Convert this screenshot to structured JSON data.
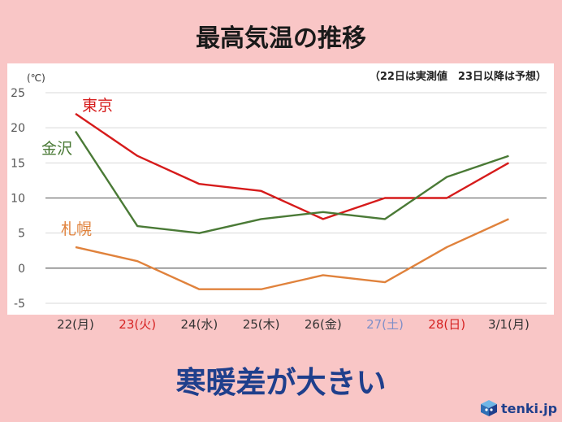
{
  "title": "最高気温の推移",
  "headline": "寒暖差が大きい",
  "logo": {
    "text": "tenki.jp",
    "icon": "tenki-cube-icon"
  },
  "chart_data": {
    "type": "line",
    "unit_label": "(℃)",
    "note": "（22日は実測値　23日以降は予想）",
    "categories": [
      "22(月)",
      "23(火)",
      "24(水)",
      "25(木)",
      "26(金)",
      "27(土)",
      "28(日)",
      "3/1(月)"
    ],
    "category_colors": [
      "#333333",
      "#d62222",
      "#333333",
      "#333333",
      "#333333",
      "#7f8fc8",
      "#d62222",
      "#333333"
    ],
    "ylim": [
      -5,
      25
    ],
    "yticks": [
      25,
      20,
      15,
      10,
      5,
      0,
      -5
    ],
    "grid": true,
    "legend": "inline labels",
    "series": [
      {
        "name": "東京",
        "color": "#d61b1b",
        "values": [
          22,
          16,
          12,
          11,
          7,
          10,
          10,
          15
        ]
      },
      {
        "name": "金沢",
        "color": "#4a7a36",
        "values": [
          19.5,
          6,
          5,
          7,
          8,
          7,
          13,
          16
        ]
      },
      {
        "name": "札幌",
        "color": "#e0823c",
        "values": [
          3,
          1,
          -3,
          -3,
          -1,
          -2,
          3,
          7
        ]
      }
    ]
  }
}
